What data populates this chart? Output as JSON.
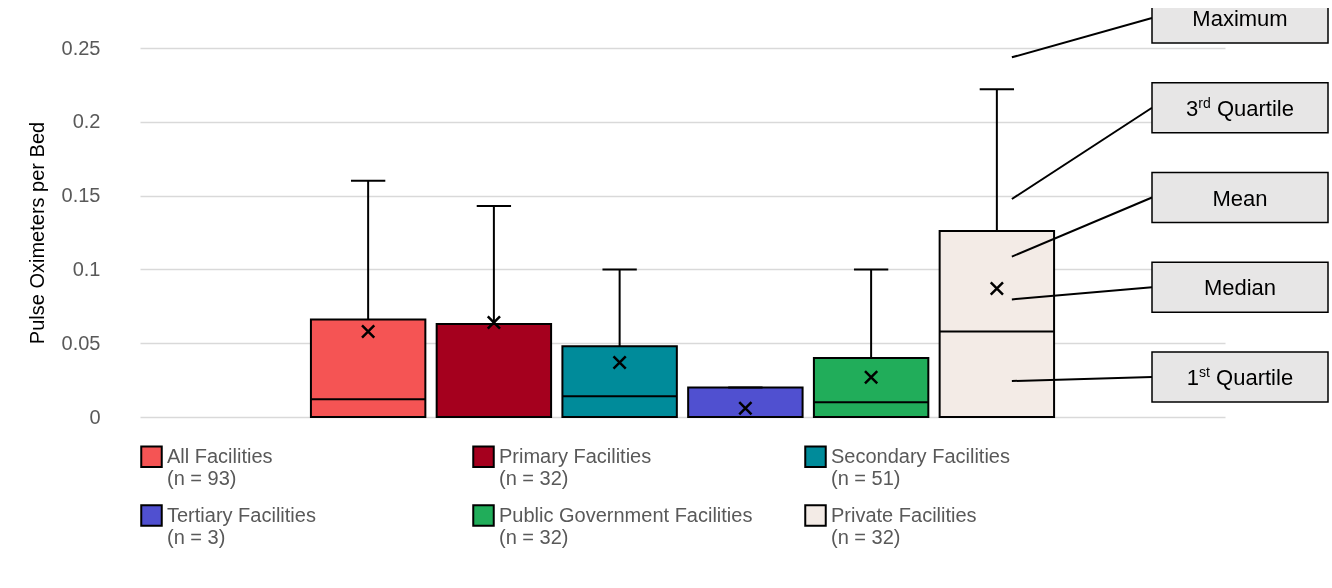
{
  "chart_data": {
    "type": "box",
    "ylabel": "Pulse Oximeters per Bed",
    "categories": [
      null
    ],
    "ylim": [
      0,
      0.25
    ],
    "yticks": [
      0,
      0.05,
      0.1,
      0.15,
      0.2,
      0.25
    ],
    "grid": "y",
    "legend": "bottom",
    "marker": "cross",
    "tick_labels": "y",
    "series": [
      {
        "name": "All Facilities\n(n = 93)",
        "color": "#f55454",
        "boxes": [
          {
            "low": 0,
            "q1": 0,
            "median": 0.012,
            "q3": 0.066,
            "high": 0.16,
            "mean": 0.058
          }
        ]
      },
      {
        "name": "Primary Facilities\n(n = 32)",
        "color": "#a5001e",
        "boxes": [
          {
            "low": 0,
            "q1": 0,
            "median": 0,
            "q3": 0.063,
            "high": 0.143,
            "mean": 0.064
          }
        ]
      },
      {
        "name": "Secondary Facilities\n(n = 51)",
        "color": "#008b9a",
        "boxes": [
          {
            "low": 0,
            "q1": 0,
            "median": 0.014,
            "q3": 0.048,
            "high": 0.1,
            "mean": 0.037
          }
        ]
      },
      {
        "name": "Tertiary Facilities\n(n = 3)",
        "color": "#5050d0",
        "boxes": [
          {
            "low": 0,
            "q1": 0,
            "median": 0,
            "q3": 0.02,
            "high": 0.02,
            "mean": 0.006
          }
        ]
      },
      {
        "name": "Public Government Facilities\n(n = 32)",
        "color": "#21ad5a",
        "boxes": [
          {
            "low": 0,
            "q1": 0,
            "median": 0.01,
            "q3": 0.04,
            "high": 0.1,
            "mean": 0.027
          }
        ]
      },
      {
        "name": "Private Facilities\n(n = 32)",
        "color": "#f3ebe6",
        "boxes": [
          {
            "low": 0,
            "q1": 0,
            "median": 0.058,
            "q3": 0.126,
            "high": 0.222,
            "mean": 0.087
          }
        ]
      }
    ],
    "annotations": [
      "Maximum",
      "3$^{rd}$ Quartile",
      "Mean",
      "Median",
      "1$^{st}$ Quartile"
    ]
  }
}
